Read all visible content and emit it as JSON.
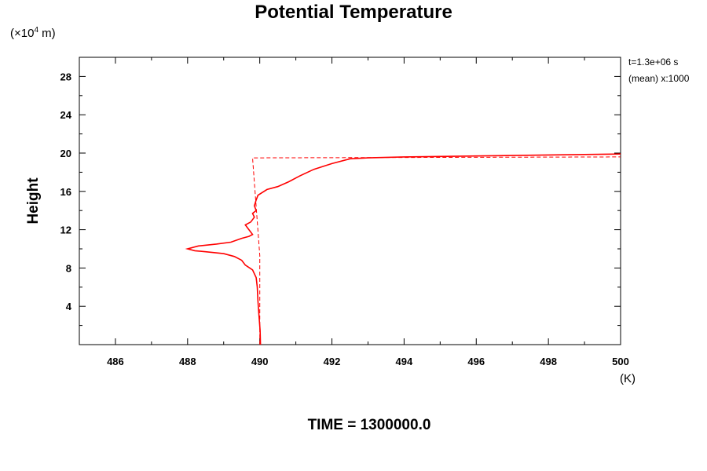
{
  "chart_data": {
    "type": "line",
    "title": "Potential Temperature",
    "ylabel": "Height",
    "y_unit_prefix": "(×10",
    "y_unit_exp": "4",
    "y_unit_suffix": " m)",
    "xlabel_unit": "(K)",
    "annotations": [
      "t=1.3e+06 s",
      "(mean) x:1000"
    ],
    "footer": "TIME = 1300000.0",
    "xlim": [
      485,
      500
    ],
    "ylim": [
      0,
      30
    ],
    "xticks": [
      486,
      488,
      490,
      492,
      494,
      496,
      498,
      500
    ],
    "yticks": [
      4,
      8,
      12,
      16,
      20,
      24,
      28
    ],
    "x_minor_step": 1,
    "y_minor_step": 2,
    "series_color": "#ff0000",
    "series": [
      {
        "style": "solid",
        "points": [
          [
            490.02,
            0.0
          ],
          [
            490.01,
            1.5
          ],
          [
            489.98,
            3.0
          ],
          [
            489.95,
            4.5
          ],
          [
            489.93,
            6.0
          ],
          [
            489.9,
            7.0
          ],
          [
            489.8,
            7.8
          ],
          [
            489.6,
            8.3
          ],
          [
            489.5,
            8.8
          ],
          [
            489.3,
            9.2
          ],
          [
            489.0,
            9.5
          ],
          [
            488.5,
            9.7
          ],
          [
            488.2,
            9.8
          ],
          [
            488.0,
            10.0
          ],
          [
            488.3,
            10.3
          ],
          [
            488.8,
            10.5
          ],
          [
            489.2,
            10.7
          ],
          [
            489.5,
            11.1
          ],
          [
            489.7,
            11.3
          ],
          [
            489.8,
            11.5
          ],
          [
            489.7,
            12.0
          ],
          [
            489.6,
            12.5
          ],
          [
            489.75,
            12.8
          ],
          [
            489.85,
            13.3
          ],
          [
            489.8,
            13.7
          ],
          [
            489.9,
            14.0
          ],
          [
            489.85,
            14.5
          ],
          [
            489.9,
            15.1
          ],
          [
            489.95,
            15.6
          ],
          [
            490.2,
            16.2
          ],
          [
            490.5,
            16.5
          ],
          [
            490.8,
            17.0
          ],
          [
            491.1,
            17.6
          ],
          [
            491.5,
            18.3
          ],
          [
            492.0,
            18.9
          ],
          [
            492.5,
            19.4
          ],
          [
            493.0,
            19.5
          ],
          [
            494.0,
            19.6
          ],
          [
            495.0,
            19.65
          ],
          [
            496.0,
            19.7
          ],
          [
            497.0,
            19.75
          ],
          [
            498.0,
            19.8
          ],
          [
            499.0,
            19.85
          ],
          [
            500.0,
            19.9
          ]
        ]
      },
      {
        "style": "dashed",
        "points": [
          [
            490.0,
            0.0
          ],
          [
            490.0,
            9.3
          ],
          [
            489.8,
            19.5
          ],
          [
            495.0,
            19.55
          ],
          [
            500.0,
            19.6
          ]
        ]
      }
    ]
  }
}
